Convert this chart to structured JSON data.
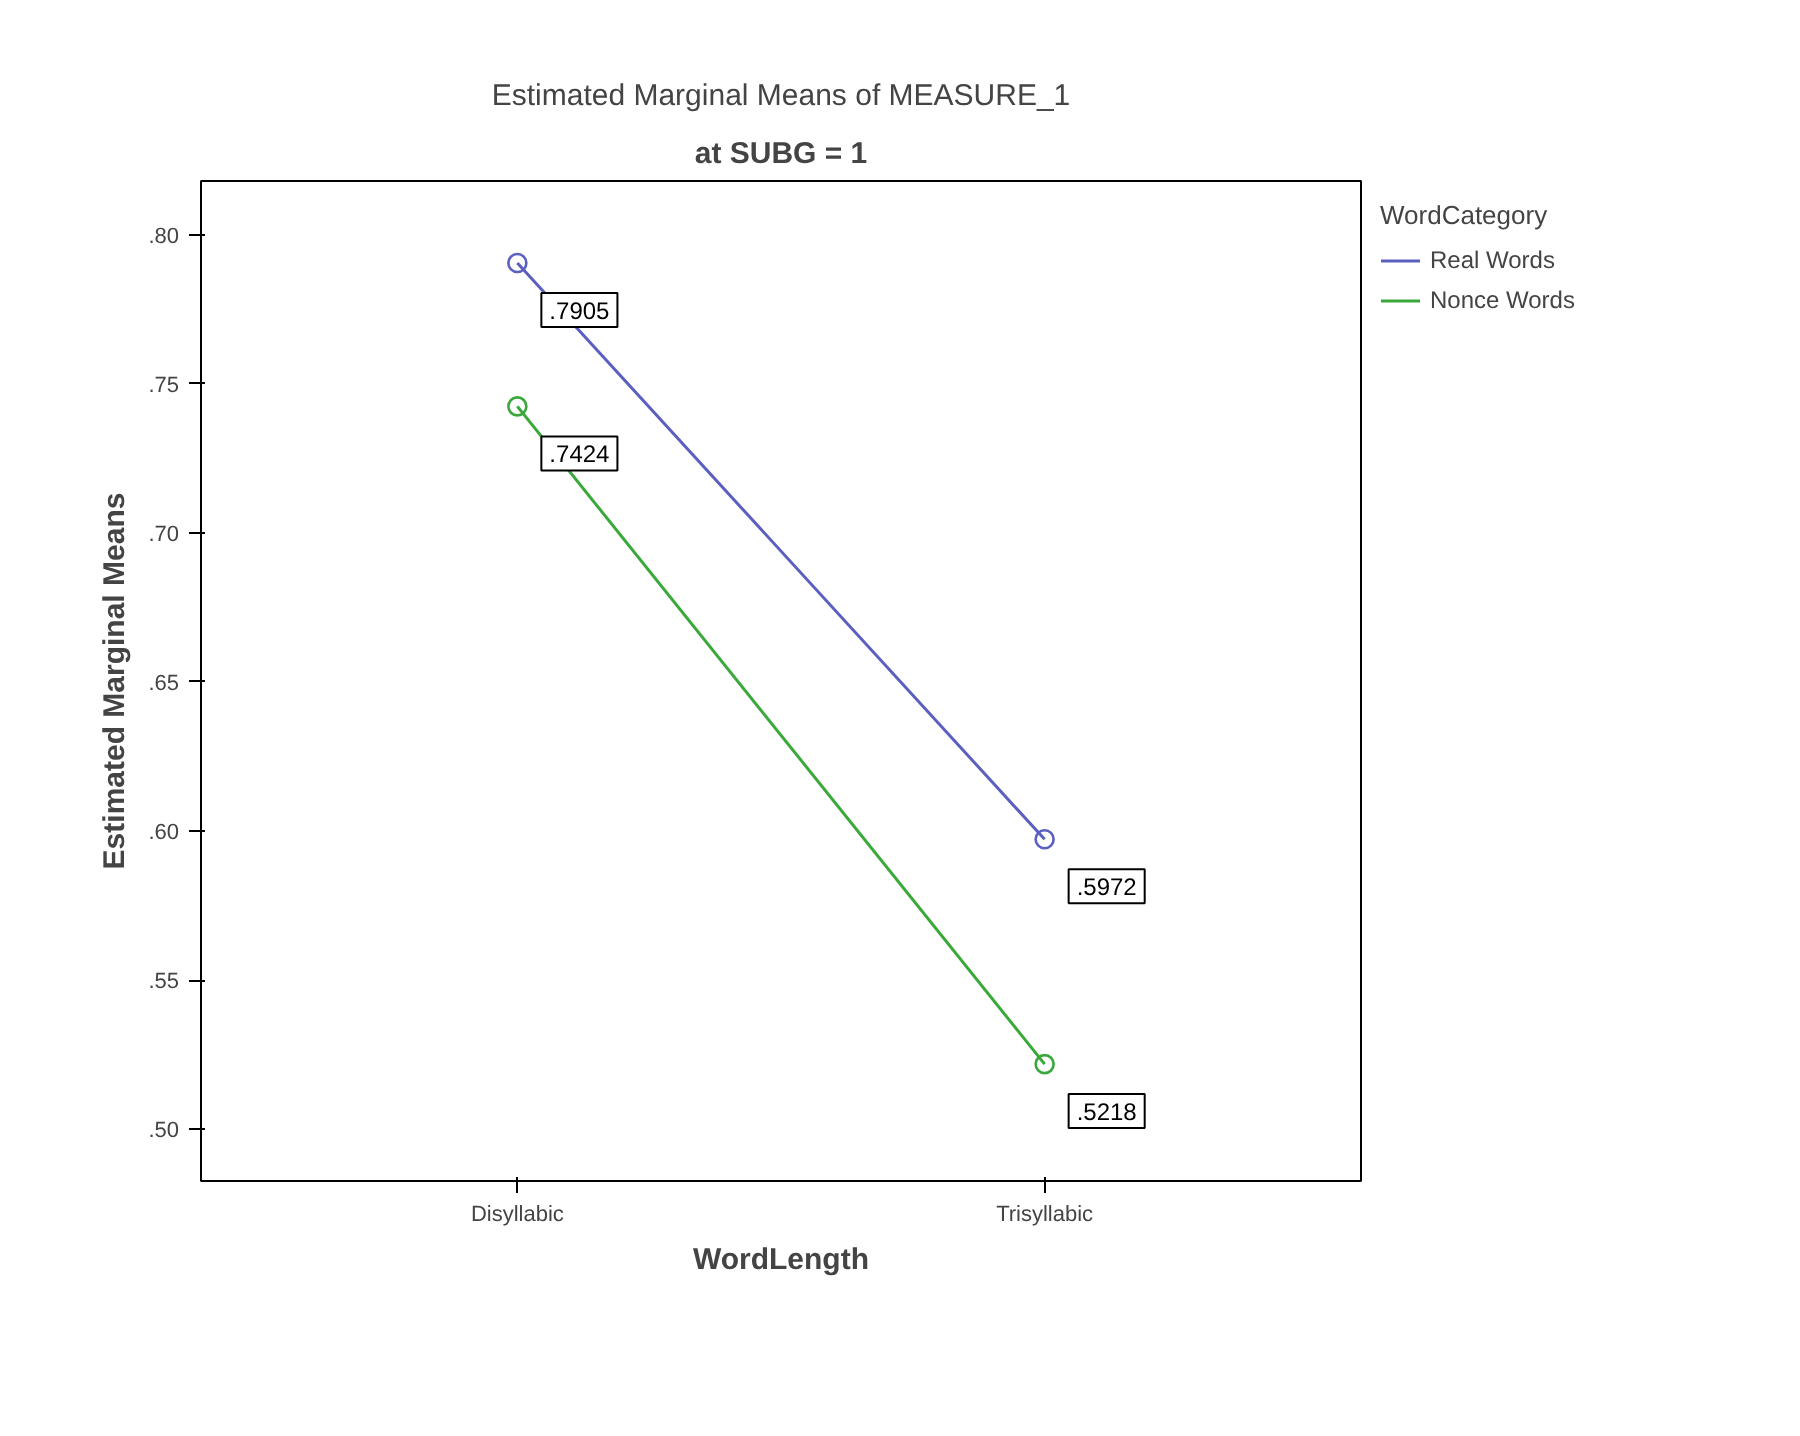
{
  "chart_data": {
    "type": "line",
    "title": "Estimated Marginal Means of MEASURE_1",
    "subtitle": "at SUBG = 1",
    "xlabel": "WordLength",
    "ylabel": "Estimated Marginal Means",
    "legend_title": "WordCategory",
    "categories": [
      "Disyllabic",
      "Trisyllabic"
    ],
    "series": [
      {
        "name": "Real Words",
        "color": "#5a5fc0",
        "values": [
          0.7905,
          0.5972
        ],
        "value_labels": [
          ".7905",
          ".5972"
        ]
      },
      {
        "name": "Nonce Words",
        "color": "#3aa83a",
        "values": [
          0.7424,
          0.5218
        ],
        "value_labels": [
          ".7424",
          ".5218"
        ]
      }
    ],
    "ylim": [
      0.4826,
      0.818
    ],
    "yticks": [
      {
        "value": 0.5,
        "label": ".50"
      },
      {
        "value": 0.55,
        "label": ".55"
      },
      {
        "value": 0.6,
        "label": ".60"
      },
      {
        "value": 0.65,
        "label": ".65"
      },
      {
        "value": 0.7,
        "label": ".70"
      },
      {
        "value": 0.75,
        "label": ".75"
      },
      {
        "value": 0.8,
        "label": ".80"
      }
    ],
    "grid": false,
    "legend": "top right",
    "marker": "circle",
    "line_style": "solid"
  }
}
